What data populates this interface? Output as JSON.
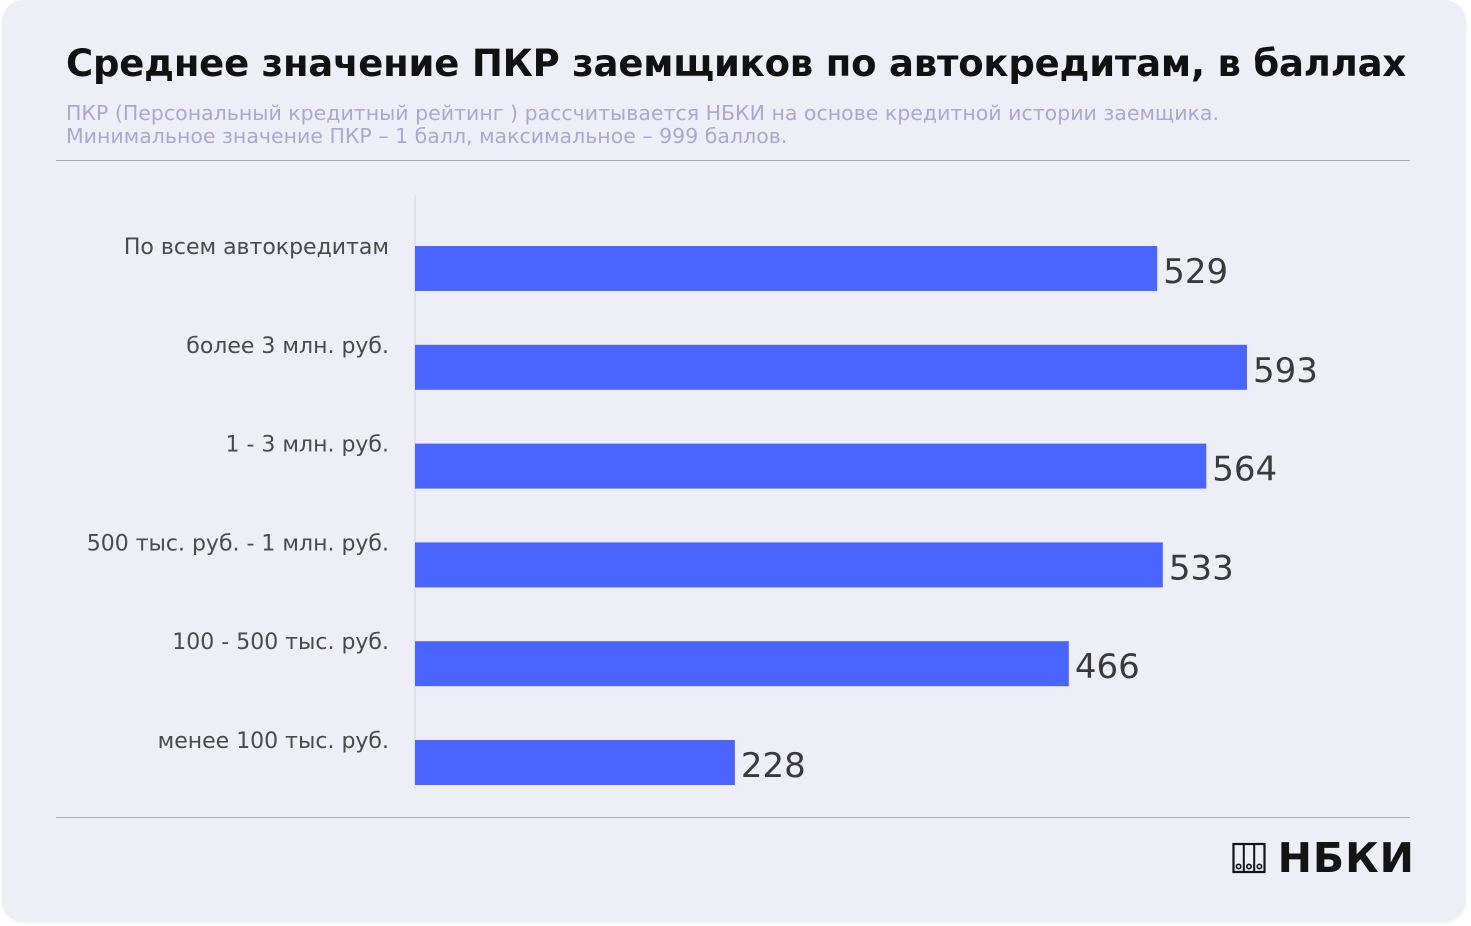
{
  "header": {
    "title": "Среднее значение ПКР заемщиков по автокредитам, в баллах",
    "subtitle_line1": "ПКР (Персональный кредитный рейтинг ) рассчитывается НБКИ на основе кредитной истории заемщика.",
    "subtitle_line2": "Минимальное значение  ПКР – 1 балл, максимальное – 999 баллов."
  },
  "logo": {
    "icon": "nbki-logo-icon",
    "text": "НБКИ"
  },
  "colors": {
    "bar": "#4a64ff",
    "background": "#eeeef6",
    "subtitle": "#a8a8d4"
  },
  "chart_data": {
    "type": "bar",
    "orientation": "horizontal",
    "title": "Среднее значение ПКР заемщиков по автокредитам, в баллах",
    "categories": [
      "По всем автокредитам",
      "более 3 млн. руб.",
      "1 - 3 млн. руб.",
      "500 тыс. руб. - 1 млн. руб.",
      "100 - 500 тыс. руб.",
      "менее 100 тыс. руб."
    ],
    "values": [
      529,
      593,
      564,
      533,
      466,
      228
    ],
    "xlim": [
      0,
      600
    ],
    "grid": false,
    "legend": "none",
    "data_labels": true
  }
}
